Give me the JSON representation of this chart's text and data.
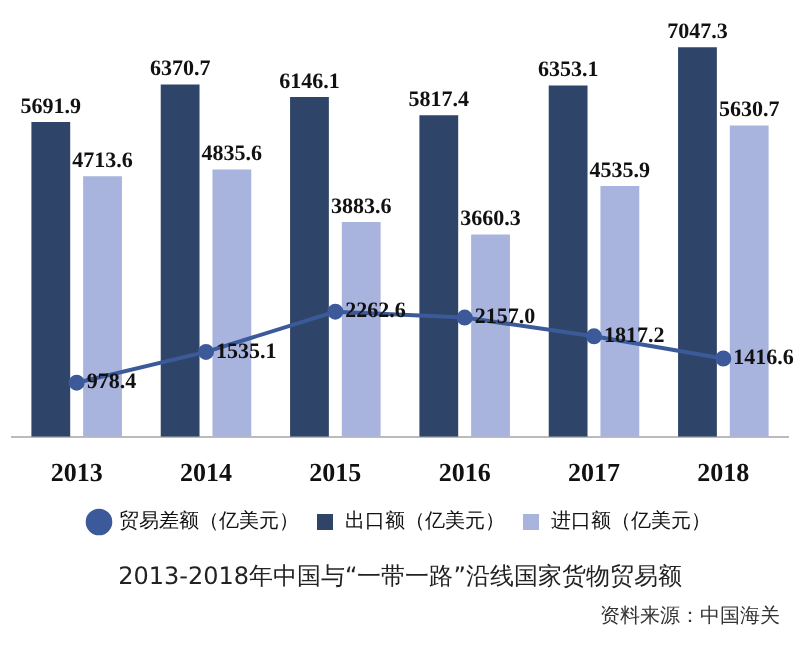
{
  "chart_data": {
    "type": "bar",
    "title": "2013-2018年中国与“一带一路”沿线国家货物贸易额",
    "annotations": [
      "资料来源：中国海关"
    ],
    "categories": [
      "2013",
      "2014",
      "2015",
      "2016",
      "2017",
      "2018"
    ],
    "legend": "bottom",
    "series": [
      {
        "name": "出口额（亿美元）",
        "color": "#2e4468",
        "values": [
          5691.9,
          6370.7,
          6146.1,
          5817.4,
          6353.1,
          7047.3
        ],
        "value_labels": [
          "5691.9",
          "6370.7",
          "6146.1",
          "5817.4",
          "6353.1",
          "7047.3"
        ]
      },
      {
        "name": "进口额（亿美元）",
        "color": "#a8b3de",
        "values": [
          4713.6,
          4835.6,
          3883.6,
          3660.3,
          4535.9,
          5630.7
        ],
        "value_labels": [
          "4713.6",
          "4835.6",
          "3883.6",
          "3660.3",
          "4535.9",
          "5630.7"
        ]
      },
      {
        "name": "贸易差额（亿美元）",
        "type": "line",
        "color": "#3c5a9a",
        "marker": "circle",
        "values": [
          978.4,
          1535.1,
          2262.6,
          2157.0,
          1817.2,
          1416.6
        ],
        "value_labels": [
          "978.4",
          "1535.1",
          "2262.6",
          "2157.0",
          "1817.2",
          "1416.6"
        ]
      }
    ]
  }
}
